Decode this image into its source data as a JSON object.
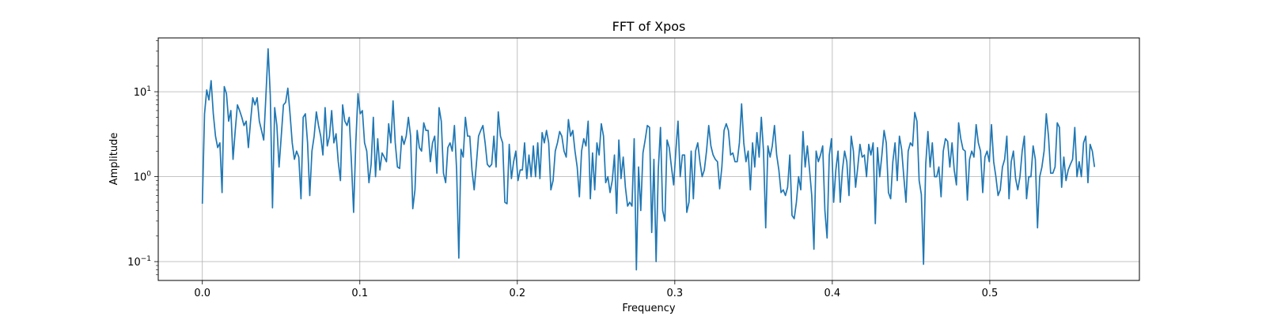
{
  "chart_data": {
    "type": "line",
    "title": "FFT of Xpos",
    "xlabel": "Frequency",
    "ylabel": "Amplitude",
    "x_scale": "linear",
    "y_scale": "log",
    "xlim": [
      -0.028,
      0.595
    ],
    "ylim": [
      0.06,
      43
    ],
    "grid": true,
    "x_ticks": [
      {
        "value": 0.0,
        "label": "0.0"
      },
      {
        "value": 0.1,
        "label": "0.1"
      },
      {
        "value": 0.2,
        "label": "0.2"
      },
      {
        "value": 0.3,
        "label": "0.3"
      },
      {
        "value": 0.4,
        "label": "0.4"
      },
      {
        "value": 0.5,
        "label": "0.5"
      }
    ],
    "y_ticks": [
      {
        "value": 0.1,
        "base": "10",
        "exp": "−1"
      },
      {
        "value": 1,
        "base": "10",
        "exp": "0"
      },
      {
        "value": 10,
        "base": "10",
        "exp": "1"
      }
    ],
    "series": [
      {
        "color": "#1f77b4",
        "x_start": 0.0,
        "x_end": 0.5665,
        "values": [
          0.48,
          5.5,
          10.5,
          8.0,
          13.5,
          5.5,
          3.0,
          2.2,
          2.5,
          0.65,
          11.5,
          9.5,
          4.5,
          6.0,
          1.6,
          3.5,
          7.0,
          6.0,
          5.0,
          4.0,
          4.5,
          2.2,
          4.5,
          8.5,
          7.0,
          8.5,
          4.5,
          3.5,
          2.7,
          9.0,
          32.0,
          9.0,
          0.43,
          6.5,
          4.0,
          1.3,
          3.0,
          7.0,
          7.5,
          11.0,
          5.5,
          2.5,
          1.6,
          2.0,
          1.7,
          0.55,
          5.0,
          5.5,
          2.5,
          0.6,
          2.0,
          3.0,
          5.8,
          4.0,
          3.0,
          1.8,
          6.5,
          2.3,
          3.0,
          6.0,
          2.5,
          3.2,
          1.5,
          0.9,
          7.0,
          4.5,
          4.0,
          5.0,
          1.5,
          0.38,
          2.5,
          9.5,
          5.5,
          6.0,
          2.5,
          2.0,
          0.85,
          1.4,
          5.0,
          1.0,
          2.8,
          1.2,
          1.9,
          1.7,
          1.5,
          4.2,
          2.5,
          7.8,
          2.5,
          1.3,
          1.25,
          3.0,
          2.4,
          3.0,
          5.0,
          3.0,
          0.42,
          0.7,
          3.5,
          2.2,
          2.0,
          4.3,
          3.5,
          3.5,
          1.5,
          2.5,
          3.0,
          1.1,
          6.5,
          4.5,
          1.1,
          0.85,
          2.2,
          2.5,
          2.0,
          4.0,
          1.2,
          0.11,
          2.1,
          1.7,
          5.0,
          3.0,
          3.0,
          1.2,
          0.7,
          1.4,
          3.0,
          3.5,
          4.0,
          2.5,
          1.4,
          1.3,
          1.4,
          3.0,
          1.3,
          5.8,
          3.0,
          2.5,
          0.5,
          0.48,
          2.4,
          0.95,
          1.5,
          2.0,
          0.9,
          1.2,
          1.2,
          2.5,
          0.95,
          1.8,
          1.0,
          2.3,
          1.0,
          2.5,
          0.95,
          3.3,
          2.5,
          3.5,
          2.5,
          0.7,
          0.9,
          2.0,
          2.5,
          3.4,
          3.0,
          2.0,
          1.7,
          4.7,
          3.0,
          3.5,
          2.0,
          1.3,
          0.58,
          2.0,
          2.8,
          2.3,
          4.5,
          0.55,
          1.9,
          0.7,
          2.5,
          1.8,
          4.2,
          3.0,
          0.85,
          1.0,
          0.65,
          0.9,
          1.8,
          0.37,
          2.7,
          0.95,
          1.7,
          0.75,
          0.45,
          0.5,
          0.45,
          2.8,
          0.08,
          1.3,
          0.4,
          1.9,
          2.7,
          4.0,
          3.8,
          0.22,
          1.6,
          0.1,
          1.2,
          3.8,
          0.4,
          0.3,
          2.7,
          2.2,
          1.3,
          0.8,
          2.0,
          4.5,
          1.0,
          1.8,
          1.8,
          0.38,
          0.5,
          2.0,
          0.55,
          2.0,
          2.5,
          1.5,
          1.0,
          1.2,
          2.0,
          4.0,
          2.3,
          1.8,
          1.6,
          1.5,
          0.72,
          1.3,
          3.5,
          4.2,
          3.5,
          1.8,
          1.9,
          1.5,
          1.5,
          2.5,
          7.2,
          2.5,
          1.5,
          2.0,
          0.7,
          2.5,
          1.3,
          3.3,
          1.7,
          5.0,
          2.0,
          0.25,
          2.3,
          1.7,
          2.3,
          4.0,
          1.8,
          1.2,
          0.65,
          0.7,
          0.6,
          0.75,
          1.8,
          0.35,
          0.32,
          0.5,
          1.0,
          0.7,
          3.4,
          1.3,
          2.3,
          1.2,
          0.6,
          0.14,
          2.0,
          1.5,
          1.8,
          2.3,
          0.4,
          0.19,
          1.8,
          2.8,
          0.5,
          1.2,
          2.0,
          0.5,
          1.2,
          2.0,
          1.5,
          0.6,
          3.0,
          2.0,
          0.75,
          1.3,
          2.4,
          1.7,
          1.8,
          1.0,
          2.4,
          1.8,
          2.5,
          0.28,
          2.2,
          1.0,
          1.8,
          3.5,
          2.5,
          0.65,
          0.55,
          1.5,
          2.5,
          0.9,
          3.0,
          2.1,
          1.0,
          0.5,
          2.0,
          2.5,
          2.3,
          5.7,
          4.5,
          0.9,
          0.62,
          0.093,
          1.4,
          3.4,
          1.3,
          2.5,
          1.0,
          1.0,
          1.3,
          0.58,
          2.0,
          2.8,
          2.6,
          1.3,
          2.5,
          1.2,
          0.8,
          4.3,
          2.8,
          2.1,
          2.0,
          0.53,
          1.6,
          2.0,
          1.7,
          4.1,
          2.5,
          2.0,
          0.65,
          1.7,
          2.0,
          1.5,
          4.1,
          1.5,
          1.0,
          0.6,
          0.7,
          1.3,
          1.6,
          3.0,
          0.55,
          1.5,
          2.0,
          0.95,
          0.7,
          1.0,
          2.0,
          3.0,
          0.55,
          1.0,
          1.0,
          2.3,
          1.6,
          0.25,
          1.0,
          1.3,
          2.0,
          5.5,
          3.0,
          1.1,
          1.1,
          1.3,
          4.3,
          3.8,
          0.75,
          1.7,
          0.9,
          1.2,
          1.4,
          1.6,
          3.8,
          1.0,
          1.5,
          1.0,
          2.5,
          3.0,
          0.85,
          2.4,
          2.0,
          1.3
        ]
      }
    ]
  }
}
